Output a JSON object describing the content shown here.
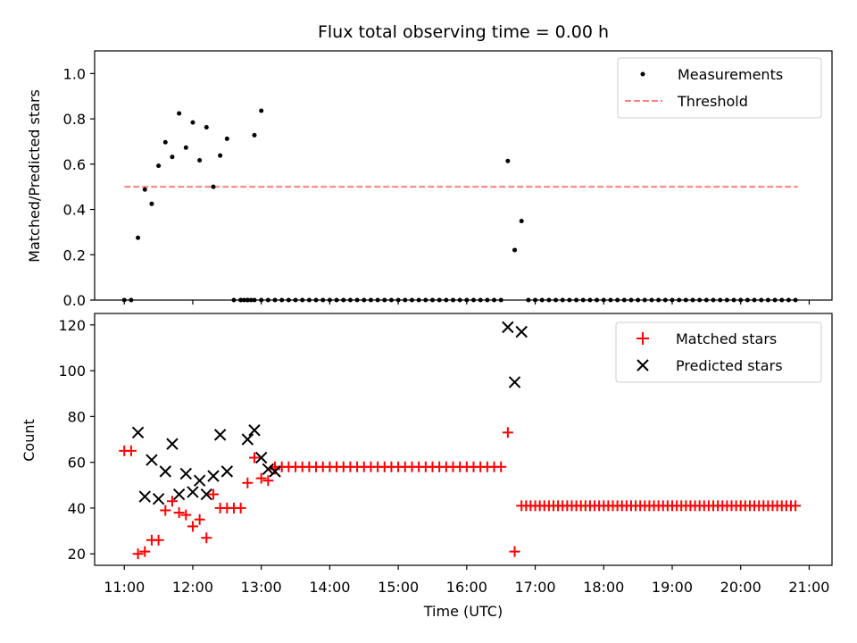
{
  "chart_data": [
    {
      "type": "scatter",
      "title": "Flux total observing time = 0.00 h",
      "xlabel": "",
      "ylabel": "Matched/Predicted stars",
      "xlim": [
        "10:34",
        "21:20"
      ],
      "ylim": [
        0,
        1.1
      ],
      "yticks": [
        "0.0",
        "0.2",
        "0.4",
        "0.6",
        "0.8",
        "1.0"
      ],
      "grid": false,
      "legend_position": "top-right",
      "threshold": {
        "name": "Threshold",
        "value": 0.5,
        "x_range": [
          "11:00",
          "20:50"
        ],
        "color": "#ff8080"
      },
      "series": [
        {
          "name": "Measurements",
          "color": "#000000",
          "x": [
            "11:00",
            "11:06",
            "11:12",
            "11:18",
            "11:24",
            "11:30",
            "11:36",
            "11:42",
            "11:48",
            "11:54",
            "12:00",
            "12:06",
            "12:12",
            "12:18",
            "12:24",
            "12:30",
            "12:36",
            "12:42",
            "12:48",
            "12:54",
            "13:00",
            "16:36",
            "16:42",
            "16:48"
          ],
          "y": [
            0.0,
            0.0,
            0.275,
            0.488,
            0.425,
            0.593,
            0.697,
            0.632,
            0.824,
            0.673,
            0.784,
            0.617,
            0.763,
            0.5,
            0.638,
            0.712,
            0.0,
            0.0,
            0.0,
            0.728,
            0.836,
            0.614,
            0.221,
            0.349
          ],
          "zero_runs": [
            [
              "12:42",
              "12:54",
              3
            ],
            [
              "13:00",
              "16:30",
              6
            ],
            [
              "16:54",
              "20:48",
              6
            ]
          ]
        }
      ]
    },
    {
      "type": "scatter",
      "title": "",
      "xlabel": "Time (UTC)",
      "ylabel": "Count",
      "xlim": [
        "10:34",
        "21:20"
      ],
      "ylim": [
        15,
        125
      ],
      "yticks": [
        "20",
        "40",
        "60",
        "80",
        "100",
        "120"
      ],
      "xticks": [
        "11:00",
        "12:00",
        "13:00",
        "14:00",
        "15:00",
        "16:00",
        "17:00",
        "18:00",
        "19:00",
        "20:00",
        "21:00"
      ],
      "grid": false,
      "legend_position": "top-right",
      "series": [
        {
          "name": "Matched stars",
          "color": "#ff0000",
          "marker": "plus",
          "points": [
            [
              "11:00",
              65
            ],
            [
              "11:06",
              65
            ],
            [
              "11:12",
              20
            ],
            [
              "11:18",
              21
            ],
            [
              "11:24",
              26
            ],
            [
              "11:30",
              26
            ],
            [
              "11:36",
              39
            ],
            [
              "11:42",
              43
            ],
            [
              "11:48",
              38
            ],
            [
              "11:54",
              37
            ],
            [
              "12:00",
              32
            ],
            [
              "12:06",
              35
            ],
            [
              "12:12",
              27
            ],
            [
              "12:18",
              46
            ],
            [
              "12:24",
              40
            ],
            [
              "12:30",
              40
            ],
            [
              "12:36",
              40
            ],
            [
              "12:42",
              40
            ],
            [
              "12:48",
              51
            ],
            [
              "12:54",
              62
            ],
            [
              "13:00",
              53
            ],
            [
              "13:06",
              52
            ],
            [
              "13:12",
              57
            ],
            [
              "16:36",
              73
            ],
            [
              "16:42",
              21
            ]
          ],
          "runs": [
            [
              "13:12",
              "16:30",
              58,
              6
            ],
            [
              "16:48",
              "20:48",
              41,
              4
            ]
          ]
        },
        {
          "name": "Predicted stars",
          "color": "#000000",
          "marker": "x",
          "points": [
            [
              "11:12",
              73
            ],
            [
              "11:18",
              45
            ],
            [
              "11:24",
              61
            ],
            [
              "11:30",
              44
            ],
            [
              "11:36",
              56
            ],
            [
              "11:42",
              68
            ],
            [
              "11:48",
              46
            ],
            [
              "11:54",
              55
            ],
            [
              "12:00",
              47
            ],
            [
              "12:06",
              52
            ],
            [
              "12:12",
              46
            ],
            [
              "12:18",
              54
            ],
            [
              "12:24",
              72
            ],
            [
              "12:30",
              56
            ],
            [
              "12:48",
              70
            ],
            [
              "12:54",
              74
            ],
            [
              "13:00",
              62
            ],
            [
              "13:06",
              57
            ],
            [
              "13:12",
              56
            ],
            [
              "16:36",
              119
            ],
            [
              "16:42",
              95
            ],
            [
              "16:48",
              117
            ]
          ]
        }
      ]
    }
  ]
}
